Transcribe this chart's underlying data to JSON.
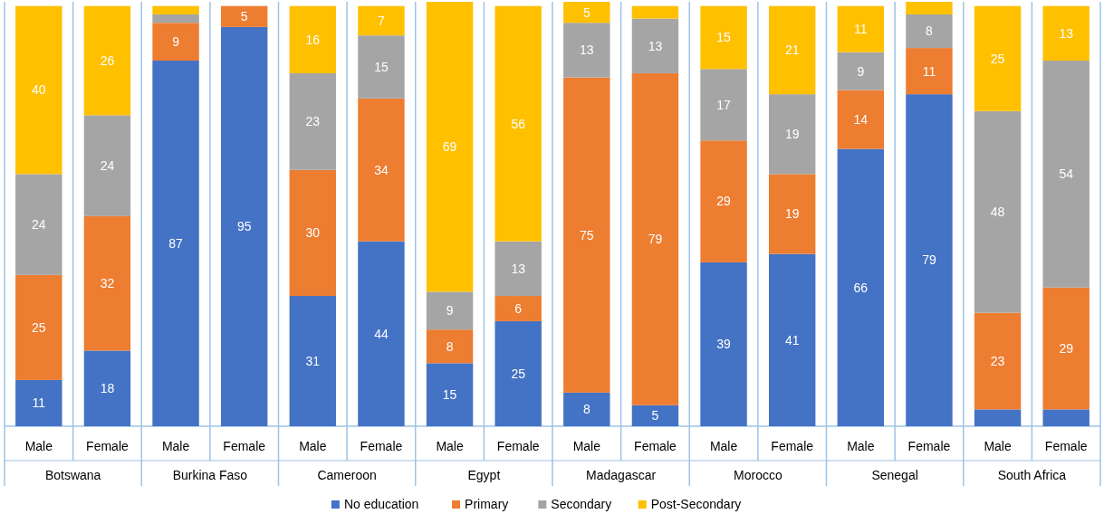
{
  "chart_data": {
    "type": "bar",
    "stacked": true,
    "categories": [
      "Male",
      "Female",
      "Male",
      "Female",
      "Male",
      "Female",
      "Male",
      "Female",
      "Male",
      "Female",
      "Male",
      "Female",
      "Male",
      "Female",
      "Male",
      "Female"
    ],
    "series": [
      {
        "name": "No education",
        "color": "#4472c4",
        "values": [
          11,
          18,
          87,
          95,
          31,
          44,
          15,
          25,
          8,
          5,
          39,
          41,
          66,
          79,
          4,
          4
        ],
        "value_labels": [
          "11",
          "18",
          "87",
          "95",
          "31",
          "44",
          "15",
          "25",
          "8",
          "5",
          "39",
          "41",
          "66",
          "79",
          null,
          null
        ]
      },
      {
        "name": "Primary",
        "color": "#ed7d31",
        "values": [
          25,
          32,
          9,
          5,
          30,
          34,
          8,
          6,
          75,
          79,
          29,
          19,
          14,
          11,
          23,
          29
        ],
        "value_labels": [
          "25",
          "32",
          "9",
          "5",
          "30",
          "34",
          "8",
          "6",
          "75",
          "79",
          "29",
          "19",
          "14",
          "11",
          "23",
          "29"
        ]
      },
      {
        "name": "Secondary",
        "color": "#a5a5a5",
        "values": [
          24,
          24,
          2,
          0,
          23,
          15,
          9,
          13,
          13,
          13,
          17,
          19,
          9,
          8,
          48,
          54
        ],
        "value_labels": [
          "24",
          "24",
          null,
          null,
          "23",
          "15",
          "9",
          "13",
          "13",
          "13",
          "17",
          "19",
          "9",
          "8",
          "48",
          "54"
        ]
      },
      {
        "name": "Post-Secondary",
        "color": "#ffc000",
        "values": [
          40,
          26,
          2,
          0,
          16,
          7,
          69,
          56,
          5,
          3,
          15,
          21,
          11,
          3,
          25,
          13
        ],
        "value_labels": [
          "40",
          "26",
          null,
          null,
          "16",
          "7",
          "69",
          "56",
          "5",
          null,
          "15",
          "21",
          "11",
          null,
          "25",
          "13"
        ]
      }
    ],
    "annotations": [
      "Botswana",
      "Burkina Faso",
      "Cameroon",
      "Egypt",
      "Madagascar",
      "Morocco",
      "Senegal",
      "South Africa"
    ],
    "legend": "bottom"
  }
}
